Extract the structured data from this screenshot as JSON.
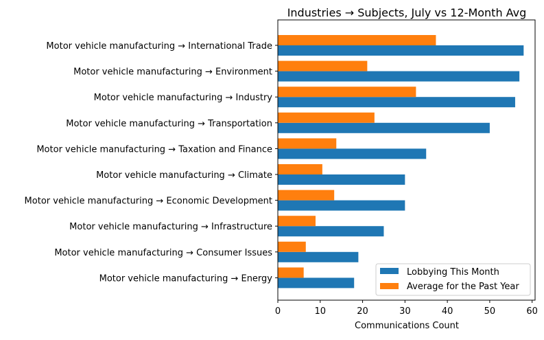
{
  "chart_data": {
    "type": "bar",
    "orientation": "horizontal",
    "title": "Industries → Subjects, July vs 12-Month Avg",
    "xlabel": "Communications Count",
    "ylabel": "",
    "xlim": [
      0,
      60.7
    ],
    "xticks": [
      0,
      10,
      20,
      30,
      40,
      50,
      60
    ],
    "grid": false,
    "legend_position": "lower right",
    "categories": [
      "Motor vehicle manufacturing → International Trade",
      "Motor vehicle manufacturing → Environment",
      "Motor vehicle manufacturing → Industry",
      "Motor vehicle manufacturing → Transportation",
      "Motor vehicle manufacturing → Taxation and Finance",
      "Motor vehicle manufacturing → Climate",
      "Motor vehicle manufacturing → Economic Development",
      "Motor vehicle manufacturing → Infrastructure",
      "Motor vehicle manufacturing → Consumer Issues",
      "Motor vehicle manufacturing → Energy"
    ],
    "series": [
      {
        "name": "Lobbying This Month",
        "color": "#1f77b4",
        "values": [
          58,
          57,
          56,
          50,
          35,
          30,
          30,
          25,
          19,
          18
        ]
      },
      {
        "name": "Average for the Past Year",
        "color": "#ff7f0e",
        "values": [
          37.3,
          21.1,
          32.6,
          22.8,
          13.8,
          10.5,
          13.3,
          8.9,
          6.6,
          6.1
        ]
      }
    ]
  }
}
